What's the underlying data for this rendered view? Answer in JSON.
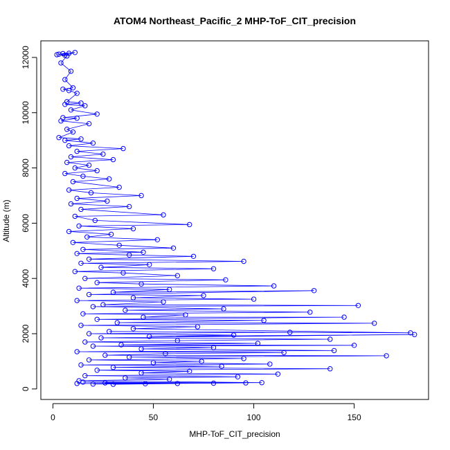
{
  "chart_data": {
    "type": "scatter",
    "title": "ATOM4 Northeast_Pacific_2 MHP-ToF_CIT_precision",
    "xlabel": "MHP-ToF_CIT_precision",
    "ylabel": "Altitude (m)",
    "xlim": [
      -6,
      187
    ],
    "ylim": [
      -380,
      12600
    ],
    "xticks": [
      0,
      50,
      100,
      150
    ],
    "yticks": [
      0,
      2000,
      4000,
      6000,
      8000,
      10000,
      12000
    ],
    "grid": false,
    "legend": "none",
    "series": [
      {
        "color": "#0000ff",
        "marker": "open-circle",
        "connected": true,
        "points": [
          [
            2,
            12100
          ],
          [
            8,
            12150
          ],
          [
            3,
            12120
          ],
          [
            6,
            12080
          ],
          [
            11,
            12180
          ],
          [
            5,
            12140
          ],
          [
            7,
            12050
          ],
          [
            4,
            11800
          ],
          [
            9,
            11500
          ],
          [
            6,
            11200
          ],
          [
            10,
            10900
          ],
          [
            5,
            10850
          ],
          [
            8,
            10800
          ],
          [
            12,
            10700
          ],
          [
            7,
            10400
          ],
          [
            14,
            10350
          ],
          [
            6,
            10300
          ],
          [
            16,
            10250
          ],
          [
            9,
            10100
          ],
          [
            22,
            9950
          ],
          [
            5,
            9820
          ],
          [
            12,
            9800
          ],
          [
            4,
            9700
          ],
          [
            18,
            9600
          ],
          [
            7,
            9400
          ],
          [
            10,
            9300
          ],
          [
            3,
            9100
          ],
          [
            14,
            9050
          ],
          [
            6,
            9000
          ],
          [
            20,
            8900
          ],
          [
            8,
            8800
          ],
          [
            35,
            8700
          ],
          [
            12,
            8600
          ],
          [
            25,
            8500
          ],
          [
            9,
            8400
          ],
          [
            30,
            8300
          ],
          [
            7,
            8200
          ],
          [
            18,
            8100
          ],
          [
            11,
            8000
          ],
          [
            22,
            7900
          ],
          [
            6,
            7800
          ],
          [
            15,
            7700
          ],
          [
            28,
            7600
          ],
          [
            10,
            7500
          ],
          [
            33,
            7300
          ],
          [
            8,
            7200
          ],
          [
            19,
            7100
          ],
          [
            44,
            7000
          ],
          [
            12,
            6900
          ],
          [
            27,
            6800
          ],
          [
            9,
            6700
          ],
          [
            38,
            6600
          ],
          [
            14,
            6500
          ],
          [
            55,
            6300
          ],
          [
            11,
            6250
          ],
          [
            21,
            6100
          ],
          [
            68,
            5950
          ],
          [
            13,
            5900
          ],
          [
            40,
            5800
          ],
          [
            8,
            5700
          ],
          [
            29,
            5600
          ],
          [
            17,
            5500
          ],
          [
            52,
            5400
          ],
          [
            10,
            5300
          ],
          [
            33,
            5200
          ],
          [
            60,
            5100
          ],
          [
            15,
            5050
          ],
          [
            45,
            4950
          ],
          [
            12,
            4900
          ],
          [
            38,
            4850
          ],
          [
            70,
            4800
          ],
          [
            18,
            4700
          ],
          [
            95,
            4620
          ],
          [
            14,
            4550
          ],
          [
            48,
            4500
          ],
          [
            24,
            4400
          ],
          [
            80,
            4350
          ],
          [
            11,
            4250
          ],
          [
            35,
            4200
          ],
          [
            62,
            4100
          ],
          [
            16,
            4000
          ],
          [
            86,
            3950
          ],
          [
            22,
            3850
          ],
          [
            44,
            3800
          ],
          [
            110,
            3730
          ],
          [
            13,
            3650
          ],
          [
            58,
            3600
          ],
          [
            30,
            3500
          ],
          [
            130,
            3560
          ],
          [
            18,
            3420
          ],
          [
            75,
            3380
          ],
          [
            40,
            3300
          ],
          [
            100,
            3250
          ],
          [
            12,
            3200
          ],
          [
            55,
            3150
          ],
          [
            25,
            3050
          ],
          [
            152,
            3020
          ],
          [
            20,
            2980
          ],
          [
            85,
            2900
          ],
          [
            36,
            2850
          ],
          [
            128,
            2780
          ],
          [
            15,
            2720
          ],
          [
            66,
            2680
          ],
          [
            45,
            2600
          ],
          [
            145,
            2600
          ],
          [
            22,
            2520
          ],
          [
            105,
            2480
          ],
          [
            32,
            2400
          ],
          [
            160,
            2380
          ],
          [
            14,
            2300
          ],
          [
            72,
            2250
          ],
          [
            40,
            2180
          ],
          [
            178,
            2030
          ],
          [
            28,
            2080
          ],
          [
            118,
            2050
          ],
          [
            18,
            2000
          ],
          [
            90,
            1950
          ],
          [
            48,
            1900
          ],
          [
            180,
            1970
          ],
          [
            24,
            1850
          ],
          [
            138,
            1800
          ],
          [
            62,
            1750
          ],
          [
            16,
            1700
          ],
          [
            102,
            1650
          ],
          [
            34,
            1600
          ],
          [
            150,
            1580
          ],
          [
            20,
            1550
          ],
          [
            80,
            1500
          ],
          [
            44,
            1450
          ],
          [
            140,
            1390
          ],
          [
            12,
            1350
          ],
          [
            115,
            1320
          ],
          [
            56,
            1280
          ],
          [
            26,
            1220
          ],
          [
            166,
            1200
          ],
          [
            38,
            1150
          ],
          [
            95,
            1100
          ],
          [
            18,
            1050
          ],
          [
            74,
            1000
          ],
          [
            50,
            950
          ],
          [
            108,
            900
          ],
          [
            14,
            870
          ],
          [
            84,
            820
          ],
          [
            30,
            780
          ],
          [
            138,
            730
          ],
          [
            22,
            680
          ],
          [
            68,
            640
          ],
          [
            44,
            580
          ],
          [
            112,
            540
          ],
          [
            16,
            480
          ],
          [
            92,
            440
          ],
          [
            36,
            400
          ],
          [
            58,
            350
          ],
          [
            13,
            300
          ],
          [
            104,
            230
          ],
          [
            26,
            220
          ],
          [
            80,
            210
          ],
          [
            12,
            200
          ],
          [
            46,
            190
          ],
          [
            20,
            180
          ],
          [
            96,
            220
          ],
          [
            15,
            250
          ],
          [
            62,
            200
          ],
          [
            30,
            170
          ]
        ]
      }
    ]
  }
}
